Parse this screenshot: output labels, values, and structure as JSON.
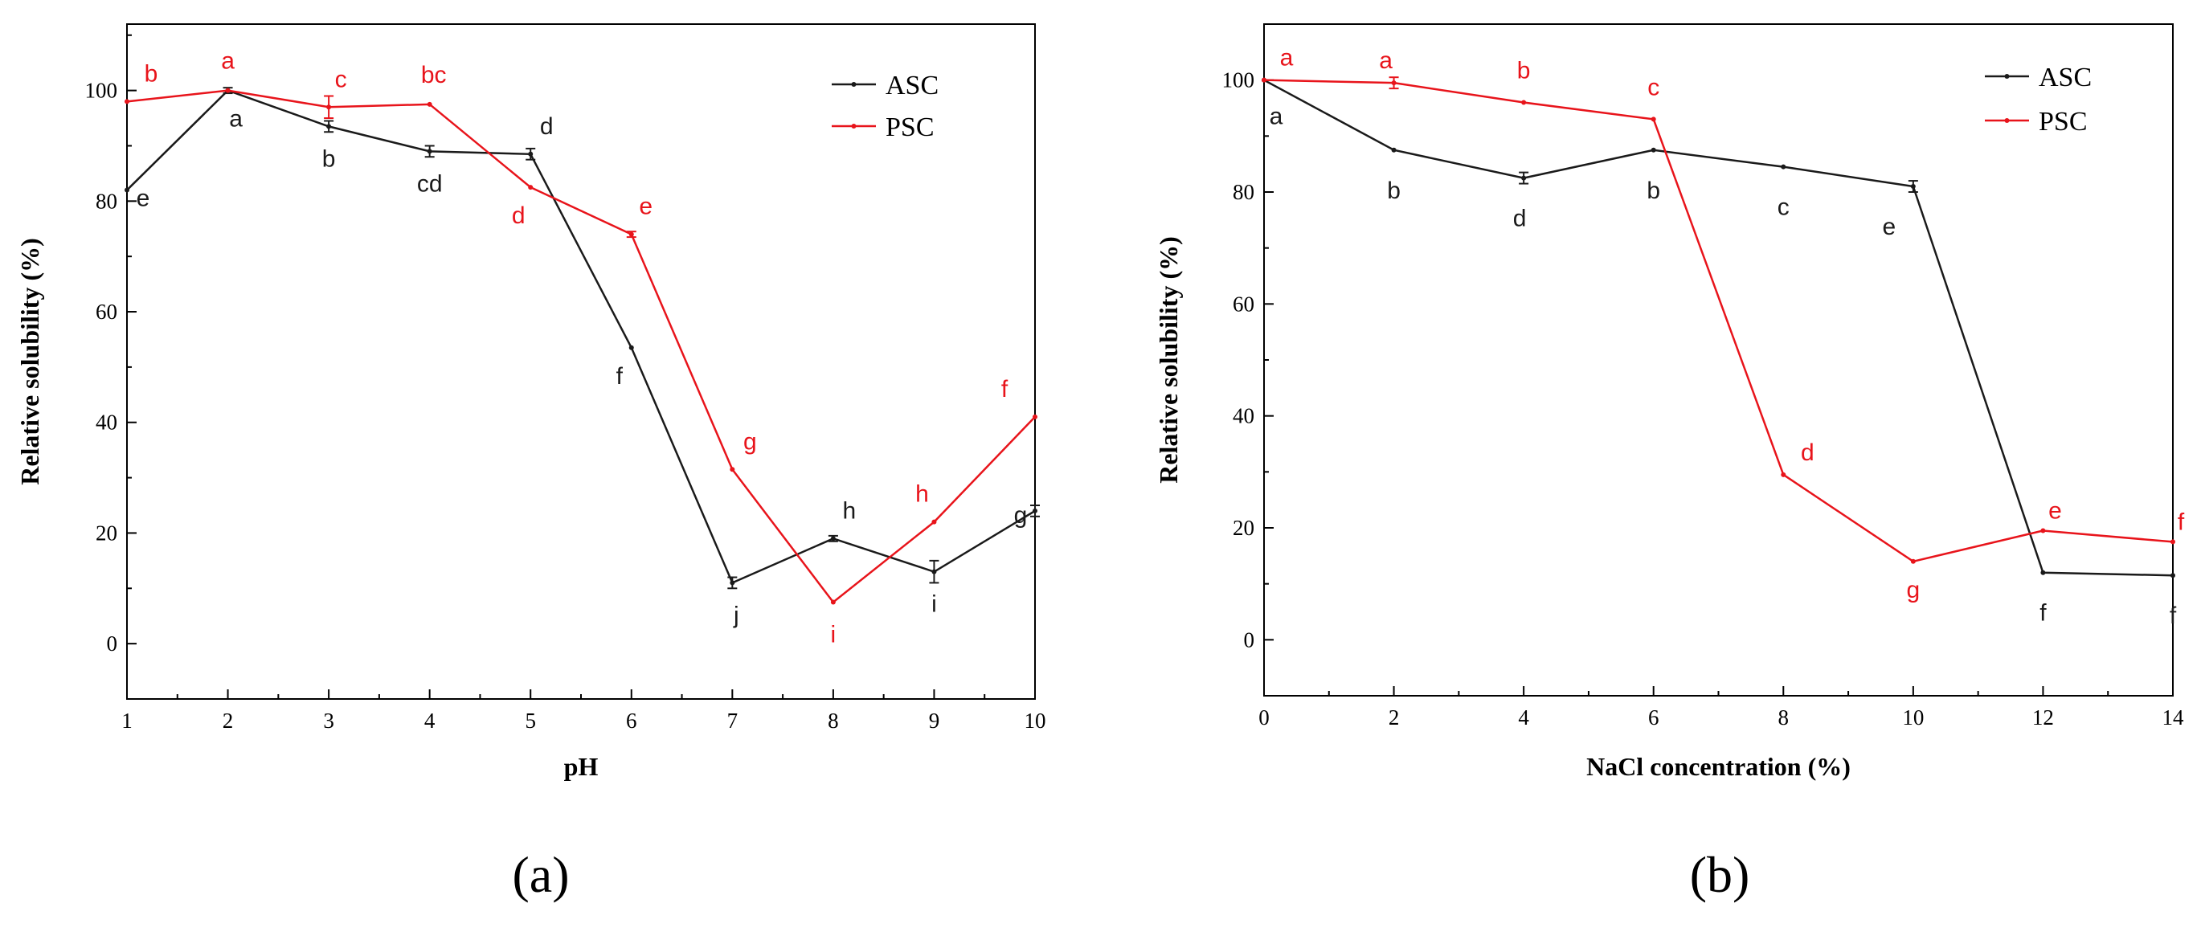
{
  "colors": {
    "ASC": "#1a1a1a",
    "PSC": "#e8141b"
  },
  "chart_data": [
    {
      "id": "a",
      "type": "line",
      "panel_label": "(a)",
      "title": "",
      "xlabel": "pH",
      "ylabel": "Relative solubility (%)",
      "xlim": [
        1,
        10
      ],
      "ylim": [
        -10,
        112
      ],
      "xticks": [
        1,
        2,
        3,
        4,
        5,
        6,
        7,
        8,
        9,
        10
      ],
      "yticks": [
        0,
        20,
        40,
        60,
        80,
        100
      ],
      "legend": {
        "position": "top-right",
        "entries": [
          "ASC",
          "PSC"
        ]
      },
      "series": [
        {
          "name": "ASC",
          "color_key": "ASC",
          "x": [
            1,
            2,
            3,
            4,
            5,
            6,
            7,
            8,
            9,
            10
          ],
          "y": [
            82,
            100,
            93.5,
            89,
            88.5,
            53.5,
            11,
            19,
            13,
            24
          ],
          "err": [
            0,
            0.5,
            1,
            1,
            1,
            0,
            1,
            0.5,
            2,
            1
          ],
          "labels": [
            "e",
            "a",
            "b",
            "cd",
            "d",
            "f",
            "j",
            "h",
            "i",
            "g"
          ]
        },
        {
          "name": "PSC",
          "color_key": "PSC",
          "x": [
            1,
            2,
            3,
            4,
            5,
            6,
            7,
            8,
            9,
            10
          ],
          "y": [
            98,
            100,
            97,
            97.5,
            82.5,
            74,
            31.5,
            7.5,
            22,
            41
          ],
          "err": [
            0,
            0,
            2,
            0,
            0,
            0.5,
            0,
            0,
            0,
            0
          ],
          "labels": [
            "b",
            "a",
            "c",
            "bc",
            "d",
            "e",
            "g",
            "i",
            "h",
            "f"
          ]
        }
      ]
    },
    {
      "id": "b",
      "type": "line",
      "panel_label": "(b)",
      "title": "",
      "xlabel": "NaCl concentration (%)",
      "ylabel": "Relative solubility (%)",
      "xlim": [
        0,
        14
      ],
      "ylim": [
        -10,
        110
      ],
      "xticks": [
        0,
        2,
        4,
        6,
        8,
        10,
        12,
        14
      ],
      "yticks": [
        0,
        20,
        40,
        60,
        80,
        100
      ],
      "legend": {
        "position": "top-right",
        "entries": [
          "ASC",
          "PSC"
        ]
      },
      "series": [
        {
          "name": "ASC",
          "color_key": "ASC",
          "x": [
            0,
            2,
            4,
            6,
            8,
            10,
            12,
            14
          ],
          "y": [
            100,
            87.5,
            82.5,
            87.5,
            84.5,
            81,
            12,
            11.5
          ],
          "err": [
            0,
            0,
            1,
            0,
            0,
            1,
            0,
            0
          ],
          "labels": [
            "a",
            "b",
            "d",
            "b",
            "c",
            "e",
            "f",
            "f"
          ]
        },
        {
          "name": "PSC",
          "color_key": "PSC",
          "x": [
            0,
            2,
            4,
            6,
            8,
            10,
            12,
            14
          ],
          "y": [
            100,
            99.5,
            96,
            93,
            29.5,
            14,
            19.5,
            17.5
          ],
          "err": [
            0,
            1,
            0,
            0,
            0,
            0,
            0,
            0
          ],
          "labels": [
            "a",
            "a",
            "b",
            "c",
            "d",
            "g",
            "e",
            "f"
          ]
        }
      ]
    }
  ]
}
